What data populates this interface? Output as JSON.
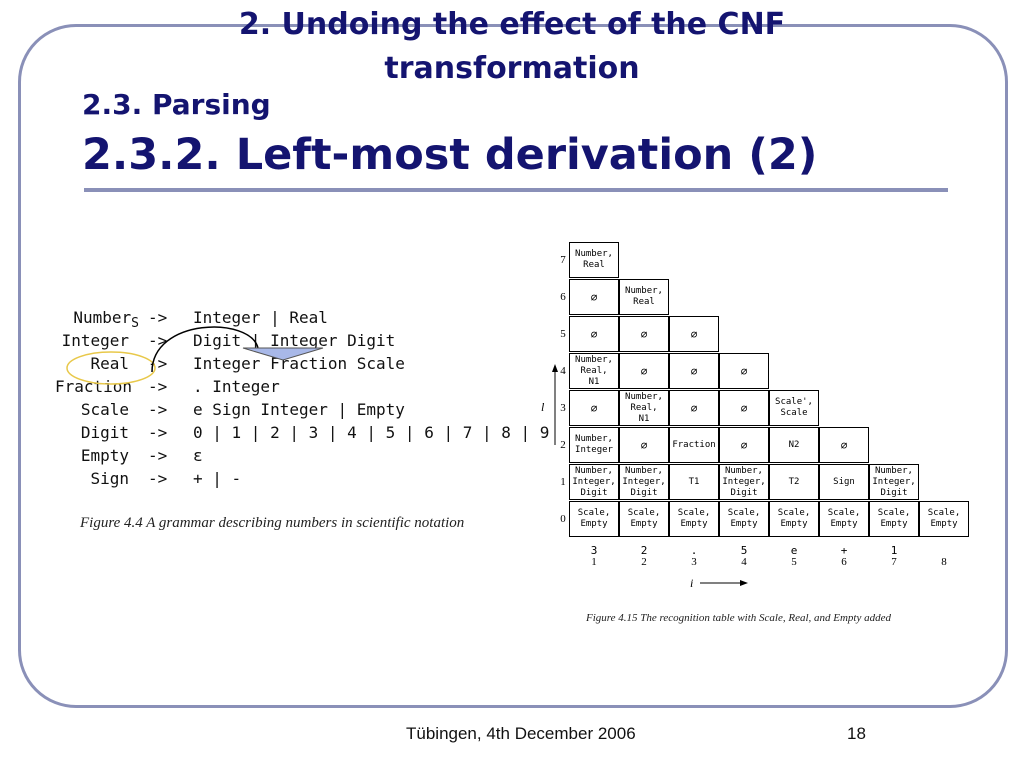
{
  "slide": {
    "title_line1": "2. Undoing the effect of the CNF",
    "title_line2": "transformation",
    "subtitle": "2.3. Parsing",
    "heading": "2.3.2. Left-most derivation (2)",
    "footer_text": "Tübingen, 4th December 2006",
    "page_number": "18"
  },
  "grammar": {
    "rules": [
      {
        "lhs": "Number",
        "lhs_sub": "S",
        "arrow": "->",
        "rhs": "Integer | Real"
      },
      {
        "lhs": "Integer",
        "lhs_sub": "",
        "arrow": "->",
        "rhs": "Digit | Integer Digit"
      },
      {
        "lhs": "Real",
        "lhs_sub": "",
        "arrow": "->",
        "rhs": "Integer Fraction Scale"
      },
      {
        "lhs": "Fraction",
        "lhs_sub": "",
        "arrow": "->",
        "rhs": ". Integer"
      },
      {
        "lhs": "Scale",
        "lhs_sub": "",
        "arrow": "->",
        "rhs": "e Sign Integer | Empty"
      },
      {
        "lhs": "Digit",
        "lhs_sub": "",
        "arrow": "->",
        "rhs": "0 | 1 | 2 | 3 | 4 | 5 | 6 | 7 | 8 | 9"
      },
      {
        "lhs": "Empty",
        "lhs_sub": "",
        "arrow": "->",
        "rhs": "ε"
      },
      {
        "lhs": "Sign",
        "lhs_sub": "",
        "arrow": "->",
        "rhs": "+ | -"
      }
    ],
    "caption": "Figure 4.4  A grammar describing numbers in scientific notation"
  },
  "table": {
    "rows": [
      {
        "l": "7",
        "cells": [
          "Number,\nReal"
        ]
      },
      {
        "l": "6",
        "cells": [
          "∅",
          "Number,\nReal"
        ]
      },
      {
        "l": "5",
        "cells": [
          "∅",
          "∅",
          "∅"
        ]
      },
      {
        "l": "4",
        "cells": [
          "Number,\nReal,\nN1",
          "∅",
          "∅",
          "∅"
        ]
      },
      {
        "l": "3",
        "cells": [
          "∅",
          "Number,\nReal,\nN1",
          "∅",
          "∅",
          "Scale',\nScale"
        ]
      },
      {
        "l": "2",
        "cells": [
          "Number,\nInteger",
          "∅",
          "Fraction",
          "∅",
          "N2",
          "∅"
        ]
      },
      {
        "l": "1",
        "cells": [
          "Number,\nInteger,\nDigit",
          "Number,\nInteger,\nDigit",
          "T1",
          "Number,\nInteger,\nDigit",
          "T2",
          "Sign",
          "Number,\nInteger,\nDigit"
        ]
      },
      {
        "l": "0",
        "cells": [
          "Scale,\nEmpty",
          "Scale,\nEmpty",
          "Scale,\nEmpty",
          "Scale,\nEmpty",
          "Scale,\nEmpty",
          "Scale,\nEmpty",
          "Scale,\nEmpty",
          "Scale,\nEmpty"
        ]
      }
    ],
    "input_symbols": [
      "3",
      "2",
      ".",
      "5",
      "e",
      "+",
      "1",
      ""
    ],
    "positions": [
      "1",
      "2",
      "3",
      "4",
      "5",
      "6",
      "7",
      "8"
    ],
    "axis_l": "l",
    "axis_i": "i",
    "caption": "Figure 4.15  The recognition table with Scale, Real, and Empty added"
  }
}
